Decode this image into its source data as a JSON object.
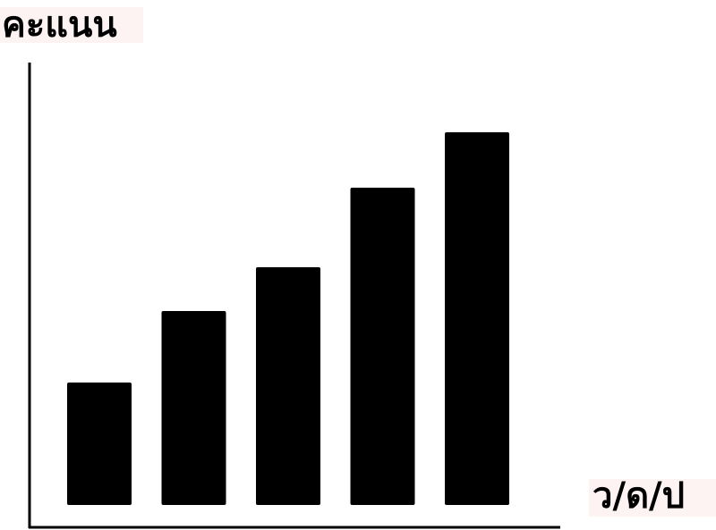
{
  "chart_data": {
    "type": "bar",
    "y_label": "คะแนน",
    "x_label": "ว/ด/ป",
    "categories": [
      null,
      null,
      null,
      null,
      null
    ],
    "values": [
      137,
      217,
      266,
      355,
      417
    ],
    "color": "#000000",
    "ylim": [
      0,
      450
    ]
  }
}
